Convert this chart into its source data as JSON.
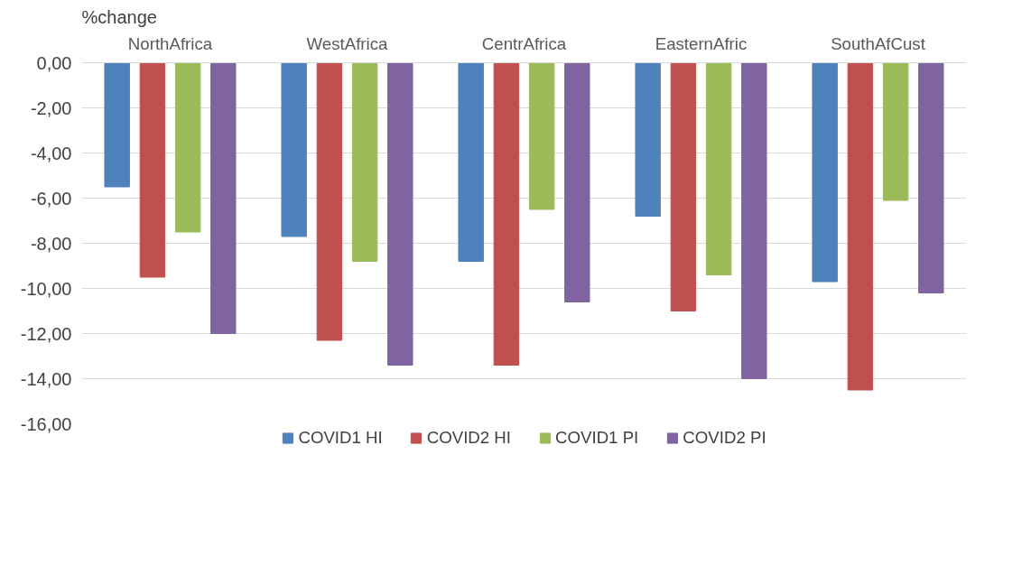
{
  "chart_data": {
    "type": "bar",
    "ylabel": "%change",
    "categories": [
      "NorthAfrica",
      "WestAfrica",
      "CentrAfrica",
      "EasternAfric",
      "SouthAfCust"
    ],
    "series": [
      {
        "name": "COVID1 HI",
        "color": "#4f81bd",
        "values": [
          -5.5,
          -7.7,
          -8.8,
          -6.8,
          -9.7
        ]
      },
      {
        "name": "COVID2 HI",
        "color": "#c0504d",
        "values": [
          -9.5,
          -12.3,
          -13.4,
          -11.0,
          -14.5
        ]
      },
      {
        "name": "COVID1 PI",
        "color": "#9bbb59",
        "values": [
          -7.5,
          -8.8,
          -6.5,
          -9.4,
          -6.1
        ]
      },
      {
        "name": "COVID2 PI",
        "color": "#8064a2",
        "values": [
          -12.0,
          -13.4,
          -10.6,
          -14.0,
          -10.2
        ]
      }
    ],
    "ylim": [
      -16,
      0
    ],
    "yticks": [
      {
        "value": 0,
        "label": "0,00"
      },
      {
        "value": -2,
        "label": "-2,00"
      },
      {
        "value": -4,
        "label": "-4,00"
      },
      {
        "value": -6,
        "label": "-6,00"
      },
      {
        "value": -8,
        "label": "-8,00"
      },
      {
        "value": -10,
        "label": "-10,00"
      },
      {
        "value": -12,
        "label": "-12,00"
      },
      {
        "value": -14,
        "label": "-14,00"
      },
      {
        "value": -16,
        "label": "-16,00"
      }
    ],
    "grid": "y",
    "legend": "bottom"
  }
}
